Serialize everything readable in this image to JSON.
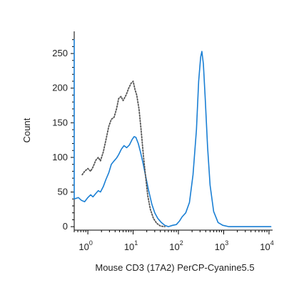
{
  "chart_data": {
    "type": "line",
    "title": "",
    "xlabel": "Mouse CD3 (17A2) PerCP-Cyanine5.5",
    "ylabel": "Count",
    "x_scale": "log",
    "xlim": [
      0.5,
      12000
    ],
    "ylim": [
      -5,
      282
    ],
    "yticks": [
      0,
      50,
      100,
      150,
      200,
      250
    ],
    "xticks": [
      {
        "value": 1,
        "base": "10",
        "exp": "0"
      },
      {
        "value": 10,
        "base": "10",
        "exp": "1"
      },
      {
        "value": 100,
        "base": "10",
        "exp": "2"
      },
      {
        "value": 1000,
        "base": "10",
        "exp": "3"
      },
      {
        "value": 10000,
        "base": "10",
        "exp": "4"
      }
    ],
    "grid": false,
    "legend": "none",
    "series": [
      {
        "style": "solid",
        "color": "#1a7fd4",
        "points": [
          [
            0.5,
            270
          ],
          [
            0.5,
            40
          ],
          [
            0.62,
            42
          ],
          [
            0.72,
            38
          ],
          [
            0.85,
            36
          ],
          [
            1.0,
            42
          ],
          [
            1.15,
            46
          ],
          [
            1.3,
            43
          ],
          [
            1.5,
            48
          ],
          [
            1.7,
            52
          ],
          [
            1.9,
            50
          ],
          [
            2.2,
            58
          ],
          [
            2.5,
            68
          ],
          [
            2.9,
            78
          ],
          [
            3.3,
            90
          ],
          [
            3.8,
            95
          ],
          [
            4.3,
            99
          ],
          [
            4.8,
            104
          ],
          [
            5.5,
            112
          ],
          [
            6.3,
            117
          ],
          [
            7.2,
            114
          ],
          [
            8.3,
            118
          ],
          [
            9.5,
            126
          ],
          [
            10.5,
            130
          ],
          [
            11.5,
            129
          ],
          [
            13,
            120
          ],
          [
            14.5,
            108
          ],
          [
            16.5,
            92
          ],
          [
            19,
            72
          ],
          [
            22,
            52
          ],
          [
            26,
            32
          ],
          [
            30,
            20
          ],
          [
            35,
            12
          ],
          [
            42,
            6
          ],
          [
            50,
            2
          ],
          [
            60,
            0
          ],
          [
            75,
            2
          ],
          [
            90,
            3
          ],
          [
            105,
            8
          ],
          [
            120,
            14
          ],
          [
            145,
            20
          ],
          [
            175,
            35
          ],
          [
            210,
            75
          ],
          [
            250,
            140
          ],
          [
            280,
            210
          ],
          [
            310,
            245
          ],
          [
            330,
            253
          ],
          [
            355,
            235
          ],
          [
            390,
            185
          ],
          [
            440,
            115
          ],
          [
            500,
            60
          ],
          [
            600,
            22
          ],
          [
            750,
            6
          ],
          [
            950,
            2
          ],
          [
            1300,
            0
          ],
          [
            3000,
            0
          ],
          [
            6000,
            0
          ],
          [
            11000,
            0
          ]
        ]
      },
      {
        "style": "dotted",
        "color": "#555555",
        "points": [
          [
            0.75,
            75
          ],
          [
            0.85,
            80
          ],
          [
            1.0,
            84
          ],
          [
            1.15,
            80
          ],
          [
            1.3,
            86
          ],
          [
            1.5,
            96
          ],
          [
            1.7,
            100
          ],
          [
            1.9,
            95
          ],
          [
            2.2,
            108
          ],
          [
            2.5,
            125
          ],
          [
            2.9,
            145
          ],
          [
            3.3,
            155
          ],
          [
            3.8,
            158
          ],
          [
            4.3,
            170
          ],
          [
            4.8,
            185
          ],
          [
            5.4,
            188
          ],
          [
            6.0,
            182
          ],
          [
            7.0,
            190
          ],
          [
            8.0,
            200
          ],
          [
            9.0,
            207
          ],
          [
            10.0,
            210
          ],
          [
            11.0,
            198
          ],
          [
            12.0,
            190
          ],
          [
            13.5,
            170
          ],
          [
            15,
            140
          ],
          [
            17,
            100
          ],
          [
            19,
            70
          ],
          [
            21,
            45
          ],
          [
            24,
            25
          ],
          [
            28,
            12
          ],
          [
            33,
            5
          ],
          [
            40,
            1
          ],
          [
            50,
            0
          ]
        ]
      }
    ]
  }
}
